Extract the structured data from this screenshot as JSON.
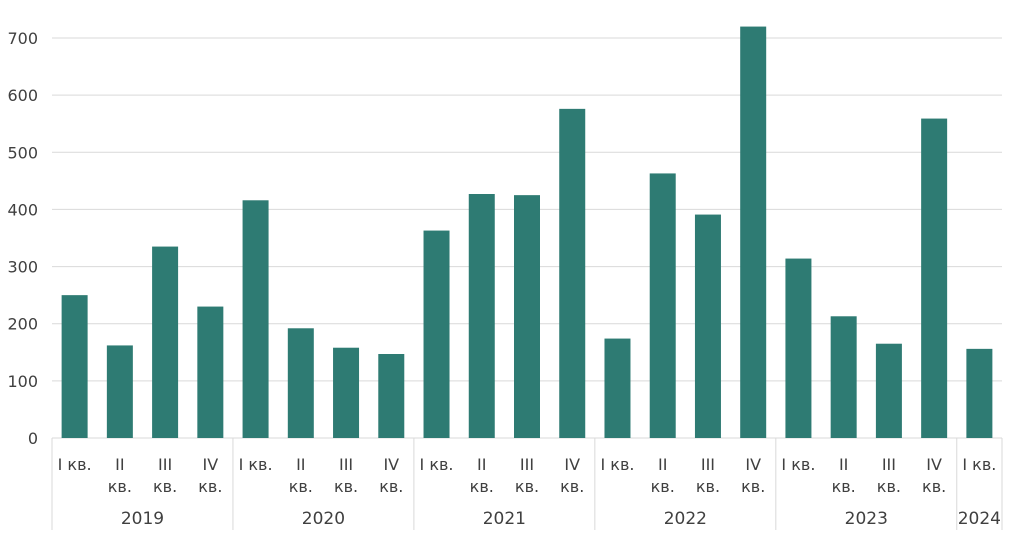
{
  "chart_data": {
    "type": "bar",
    "title": "",
    "xlabel": "",
    "ylabel": "",
    "ylim": [
      0,
      700
    ],
    "yticks": [
      0,
      100,
      200,
      300,
      400,
      500,
      600,
      700
    ],
    "grid": true,
    "legend": "none",
    "bar_color": "#2e7b73",
    "groups": [
      {
        "year": "2019",
        "quarters": [
          {
            "label": [
              "I кв."
            ],
            "value": 250
          },
          {
            "label": [
              "II",
              "кв."
            ],
            "value": 162
          },
          {
            "label": [
              "III",
              "кв."
            ],
            "value": 335
          },
          {
            "label": [
              "IV",
              "кв."
            ],
            "value": 230
          }
        ]
      },
      {
        "year": "2020",
        "quarters": [
          {
            "label": [
              "I кв."
            ],
            "value": 416
          },
          {
            "label": [
              "II",
              "кв."
            ],
            "value": 192
          },
          {
            "label": [
              "III",
              "кв."
            ],
            "value": 158
          },
          {
            "label": [
              "IV",
              "кв."
            ],
            "value": 147
          }
        ]
      },
      {
        "year": "2021",
        "quarters": [
          {
            "label": [
              "I кв."
            ],
            "value": 363
          },
          {
            "label": [
              "II",
              "кв."
            ],
            "value": 427
          },
          {
            "label": [
              "III",
              "кв."
            ],
            "value": 425
          },
          {
            "label": [
              "IV",
              "кв."
            ],
            "value": 576
          }
        ]
      },
      {
        "year": "2022",
        "quarters": [
          {
            "label": [
              "I кв."
            ],
            "value": 174
          },
          {
            "label": [
              "II",
              "кв."
            ],
            "value": 463
          },
          {
            "label": [
              "III",
              "кв."
            ],
            "value": 391
          },
          {
            "label": [
              "IV",
              "кв."
            ],
            "value": 720
          }
        ]
      },
      {
        "year": "2023",
        "quarters": [
          {
            "label": [
              "I кв."
            ],
            "value": 314
          },
          {
            "label": [
              "II",
              "кв."
            ],
            "value": 213
          },
          {
            "label": [
              "III",
              "кв."
            ],
            "value": 165
          },
          {
            "label": [
              "IV",
              "кв."
            ],
            "value": 559
          }
        ]
      },
      {
        "year": "2024",
        "quarters": [
          {
            "label": [
              "I кв."
            ],
            "value": 156
          }
        ]
      }
    ]
  }
}
